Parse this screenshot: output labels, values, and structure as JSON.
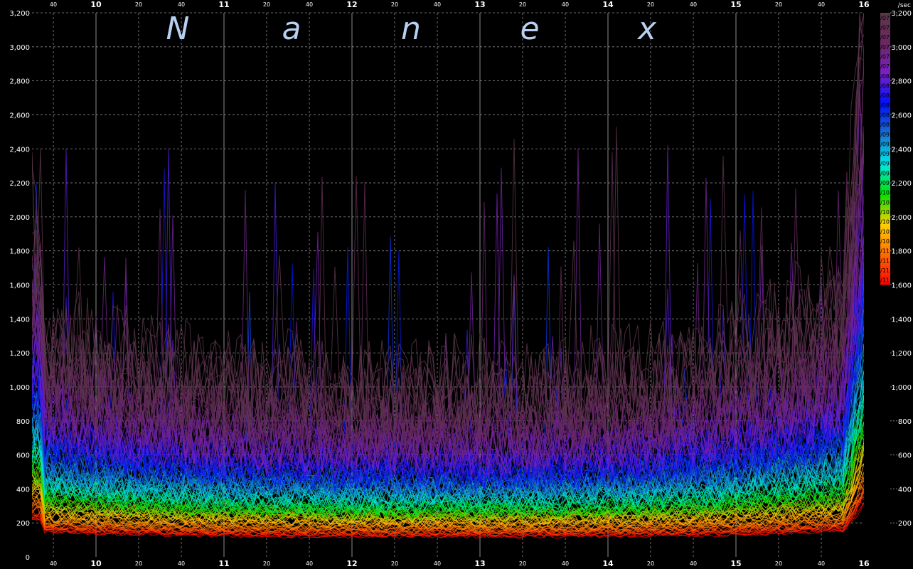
{
  "chart_data": {
    "type": "line",
    "title": "N a n e x",
    "title_letters": [
      "N",
      "a",
      "n",
      "e",
      "x"
    ],
    "y_unit": "/sec",
    "ylim": [
      0,
      3200
    ],
    "y_ticks": [
      0,
      200,
      400,
      600,
      800,
      1000,
      1200,
      1400,
      1600,
      1800,
      2000,
      2200,
      2400,
      2600,
      2800,
      3000,
      3200
    ],
    "y_tick_labels": [
      "0",
      "200",
      "400",
      "600",
      "800",
      "1,000",
      "1,200",
      "1,400",
      "1,600",
      "1,800",
      "2,000",
      "2,200",
      "2,400",
      "2,600",
      "2,800",
      "3,000",
      "3,200"
    ],
    "x_range_hours": [
      "9:30",
      "16:00"
    ],
    "x_major_ticks": [
      "10",
      "11",
      "12",
      "13",
      "14",
      "15",
      "16"
    ],
    "x_minor_tick_labels": [
      "40",
      "20",
      "40",
      "20",
      "40",
      "20",
      "40",
      "20",
      "40",
      "20",
      "40",
      "20",
      "40"
    ],
    "grid": true,
    "legend_position": "right",
    "legend_entries": [
      "1/07",
      "3/07",
      "5/07",
      "7/07",
      "9/07",
      "11/07",
      "1/08",
      "3/08",
      "5/08",
      "7/08",
      "9/08",
      "11/08",
      "1/09",
      "3/09",
      "5/09",
      "7/09",
      "9/09",
      "11/09",
      "1/10",
      "3/10",
      "5/10",
      "7/10",
      "9/10",
      "11/10",
      "1/11",
      "3/11",
      "5/11",
      "7/11"
    ],
    "colorbar_ticks": [
      1600,
      1800,
      2000,
      2200,
      2400,
      2600,
      2800,
      3000,
      3200
    ],
    "colorbar_tick_labels": [
      "1,600",
      "1,800",
      "2,000",
      "2,200",
      "2,400",
      "2,600",
      "2,800",
      "3,000",
      "3,200"
    ],
    "colors": {
      "background": "#000000",
      "grid": "#8a8a8a",
      "axis_text": "#ffffff",
      "title_text": "#b8d0f0",
      "scale": [
        "#ff0000",
        "#ff6a00",
        "#ffd000",
        "#00e000",
        "#00e8e8",
        "#1a70d0",
        "#0010ff",
        "#7a20c8",
        "#6a2860",
        "#5a3848"
      ]
    },
    "series_profile": {
      "description_bands": "monthly series from 1/07 (top, purple) to 7/11 (bottom, red)",
      "band_levels_start": [
        150,
        200,
        300,
        400,
        500,
        650,
        800,
        1000,
        1300
      ],
      "band_levels_mid": [
        120,
        170,
        240,
        300,
        400,
        480,
        600,
        750,
        1050
      ],
      "band_levels_end": [
        160,
        220,
        330,
        450,
        600,
        750,
        950,
        1200,
        1600
      ],
      "spike_max": 3200
    }
  }
}
